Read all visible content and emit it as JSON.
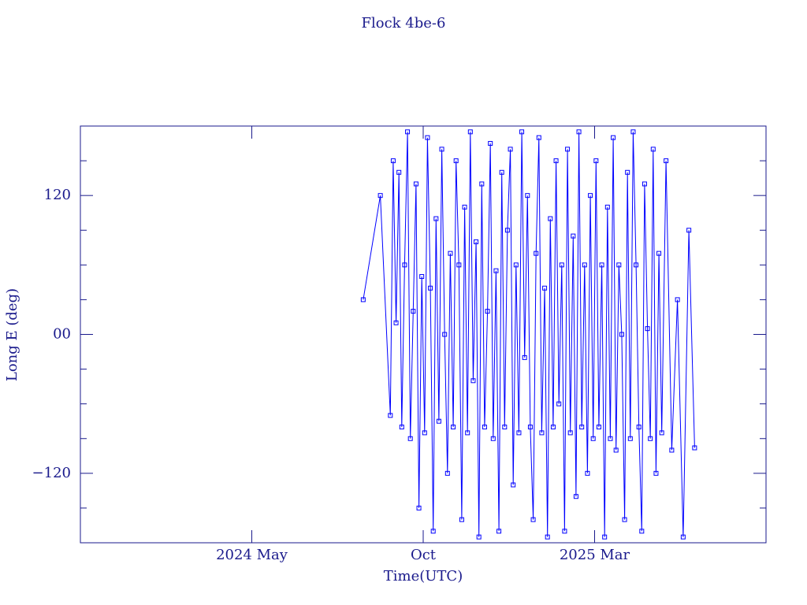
{
  "chart_data": {
    "type": "line",
    "title": "Flock 4be-6",
    "x_label": "Time(UTC)",
    "y_label": "Long E (deg)",
    "color": "#0000ff",
    "axis_color": "#1a1a8c",
    "marker": "square",
    "xlim": [
      "2023-12",
      "2025-08"
    ],
    "xticks": [
      {
        "value": "2024-05",
        "label": "2024 May"
      },
      {
        "value": "2024-10",
        "label": "Oct"
      },
      {
        "value": "2025-03",
        "label": "2025 Mar"
      }
    ],
    "ylim": [
      -180,
      180
    ],
    "yticks": [
      {
        "value": -120,
        "label": "−120"
      },
      {
        "value": 0,
        "label": "00"
      },
      120
    ],
    "yminorticks": [
      -150,
      -90,
      -60,
      -30,
      30,
      60,
      90,
      150
    ],
    "x": [
      "2024-08",
      "2024-08",
      "2024-09",
      "2024-09",
      "2024-09",
      "2024-09",
      "2024-09",
      "2024-09",
      "2024-09",
      "2024-09",
      "2024-09",
      "2024-09",
      "2024-09",
      "2024-09",
      "2024-10",
      "2024-10",
      "2024-10",
      "2024-10",
      "2024-10",
      "2024-10",
      "2024-10",
      "2024-10",
      "2024-10",
      "2024-10",
      "2024-10",
      "2024-10",
      "2024-11",
      "2024-11",
      "2024-11",
      "2024-11",
      "2024-11",
      "2024-11",
      "2024-11",
      "2024-11",
      "2024-11",
      "2024-11",
      "2024-11",
      "2024-11",
      "2024-12",
      "2024-12",
      "2024-12",
      "2024-12",
      "2024-12",
      "2024-12",
      "2024-12",
      "2024-12",
      "2024-12",
      "2024-12",
      "2024-12",
      "2024-12",
      "2025-01",
      "2025-01",
      "2025-01",
      "2025-01",
      "2025-01",
      "2025-01",
      "2025-01",
      "2025-01",
      "2025-01",
      "2025-01",
      "2025-01",
      "2025-01",
      "2025-02",
      "2025-02",
      "2025-02",
      "2025-02",
      "2025-02",
      "2025-02",
      "2025-02",
      "2025-02",
      "2025-02",
      "2025-02",
      "2025-02",
      "2025-02",
      "2025-03",
      "2025-03",
      "2025-03",
      "2025-03",
      "2025-03",
      "2025-03",
      "2025-03",
      "2025-03",
      "2025-03",
      "2025-03",
      "2025-03",
      "2025-03",
      "2025-04",
      "2025-04",
      "2025-04",
      "2025-04",
      "2025-04",
      "2025-04",
      "2025-04",
      "2025-04",
      "2025-04",
      "2025-04",
      "2025-04",
      "2025-04",
      "2025-05",
      "2025-05",
      "2025-05",
      "2025-05",
      "2025-05",
      "2025-05"
    ],
    "values": [
      30,
      120,
      -70,
      150,
      10,
      140,
      -80,
      60,
      175,
      -90,
      20,
      130,
      -150,
      50,
      -85,
      170,
      40,
      -170,
      100,
      -75,
      160,
      0,
      -120,
      70,
      -80,
      150,
      60,
      -160,
      110,
      -85,
      175,
      -40,
      80,
      -175,
      130,
      -80,
      20,
      165,
      -90,
      55,
      -170,
      140,
      -80,
      90,
      160,
      -130,
      60,
      -85,
      175,
      -20,
      120,
      -80,
      -160,
      70,
      170,
      -85,
      40,
      -175,
      100,
      -80,
      150,
      -60,
      60,
      -170,
      160,
      -85,
      85,
      -140,
      175,
      -80,
      60,
      -120,
      120,
      -90,
      150,
      -80,
      60,
      -175,
      110,
      -90,
      170,
      -100,
      60,
      0,
      -160,
      140,
      -90,
      175,
      60,
      -80,
      -170,
      130,
      5,
      -90,
      160,
      -120,
      70,
      -85,
      150,
      -100,
      30,
      -175,
      90,
      -98
    ]
  }
}
